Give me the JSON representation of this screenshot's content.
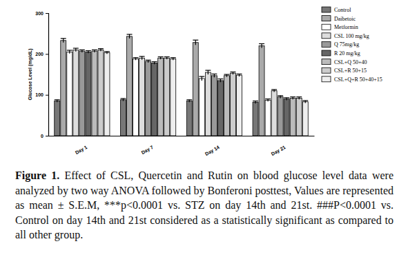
{
  "chart_data": {
    "type": "bar",
    "title": "Figure 1.",
    "subtitle": "Effect of CSL, Quercetin and Rutin on blood glucose level data were analyzed by two way ANOVA followed by Bonferoni posttest, Values are represented as mean ± S.E.M, ***p<0.0001 vs. STZ on day 14th and 21st. ###P<0.0001 vs. Control on day 14th and 21st considered as a statistically significant as compared to all other group.",
    "y_label": "Glucose Level (mg/dL)",
    "categories": [
      "Day 1",
      "Day 7",
      "Day 14",
      "Day 21"
    ],
    "series": [
      {
        "name": "Control",
        "color": "#777777",
        "values": [
          85,
          88,
          85,
          82
        ],
        "errors": [
          3,
          3,
          3,
          3
        ]
      },
      {
        "name": "Daibetoic",
        "color": "#aaaaaa",
        "values": [
          233,
          243,
          228,
          220
        ],
        "errors": [
          5,
          5,
          6,
          5
        ]
      },
      {
        "name": "Metformin",
        "color": "#ffffff",
        "values": [
          205,
          188,
          140,
          87
        ],
        "errors": [
          4,
          3,
          5,
          3
        ]
      },
      {
        "name": "CSL 100 mg/kg",
        "color": "#dddddd",
        "values": [
          210,
          190,
          155,
          110
        ],
        "errors": [
          4,
          4,
          5,
          3
        ]
      },
      {
        "name": "Q 75mg/kg",
        "color": "#999999",
        "values": [
          207,
          182,
          147,
          95
        ],
        "errors": [
          3,
          3,
          4,
          3
        ]
      },
      {
        "name": "R 20 mg/kg",
        "color": "#666666",
        "values": [
          205,
          178,
          135,
          90
        ],
        "errors": [
          3,
          3,
          4,
          3
        ]
      },
      {
        "name": "CSL+Q 50+40",
        "color": "#bbbbbb",
        "values": [
          207,
          190,
          147,
          92
        ],
        "errors": [
          3,
          3,
          3,
          3
        ]
      },
      {
        "name": "CSL+R 50+15",
        "color": "#cccccc",
        "values": [
          210,
          190,
          153,
          92
        ],
        "errors": [
          3,
          3,
          3,
          3
        ]
      },
      {
        "name": "CSL+Q+R 50+40+15",
        "color": "#eeeeee",
        "values": [
          203,
          188,
          148,
          83
        ],
        "errors": [
          3,
          3,
          3,
          3
        ]
      }
    ],
    "ylim": [
      0,
      300
    ],
    "yticks": [
      0,
      100,
      200,
      300
    ],
    "legend": "right"
  }
}
